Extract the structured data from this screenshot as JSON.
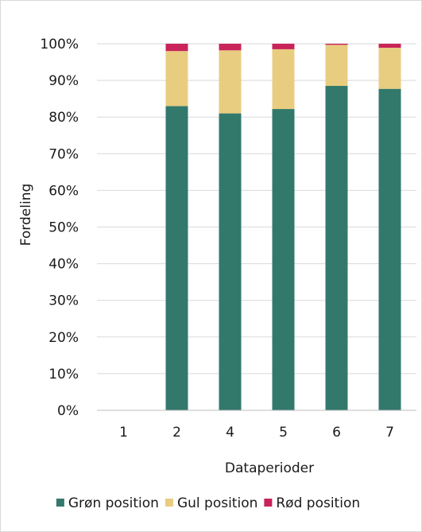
{
  "chart_data": {
    "type": "bar",
    "stacked": true,
    "xlabel": "Dataperioder",
    "ylabel": "Fordeling",
    "categories": [
      "1",
      "2",
      "4",
      "5",
      "6",
      "7"
    ],
    "ylim": [
      0,
      100
    ],
    "y_ticks": [
      "0%",
      "10%",
      "20%",
      "30%",
      "40%",
      "50%",
      "60%",
      "70%",
      "80%",
      "90%",
      "100%"
    ],
    "grid": true,
    "legend_position": "bottom",
    "series": [
      {
        "name": "Grøn position",
        "color": "#32796c",
        "values": [
          0,
          83,
          81,
          82.2,
          88.5,
          87.7
        ]
      },
      {
        "name": "Gul position",
        "color": "#e8cd80",
        "values": [
          0,
          15,
          17.2,
          16.3,
          11.2,
          11.2
        ]
      },
      {
        "name": "Rød position",
        "color": "#c8245a",
        "values": [
          0,
          2,
          1.8,
          1.5,
          0.3,
          1.1
        ]
      }
    ]
  }
}
